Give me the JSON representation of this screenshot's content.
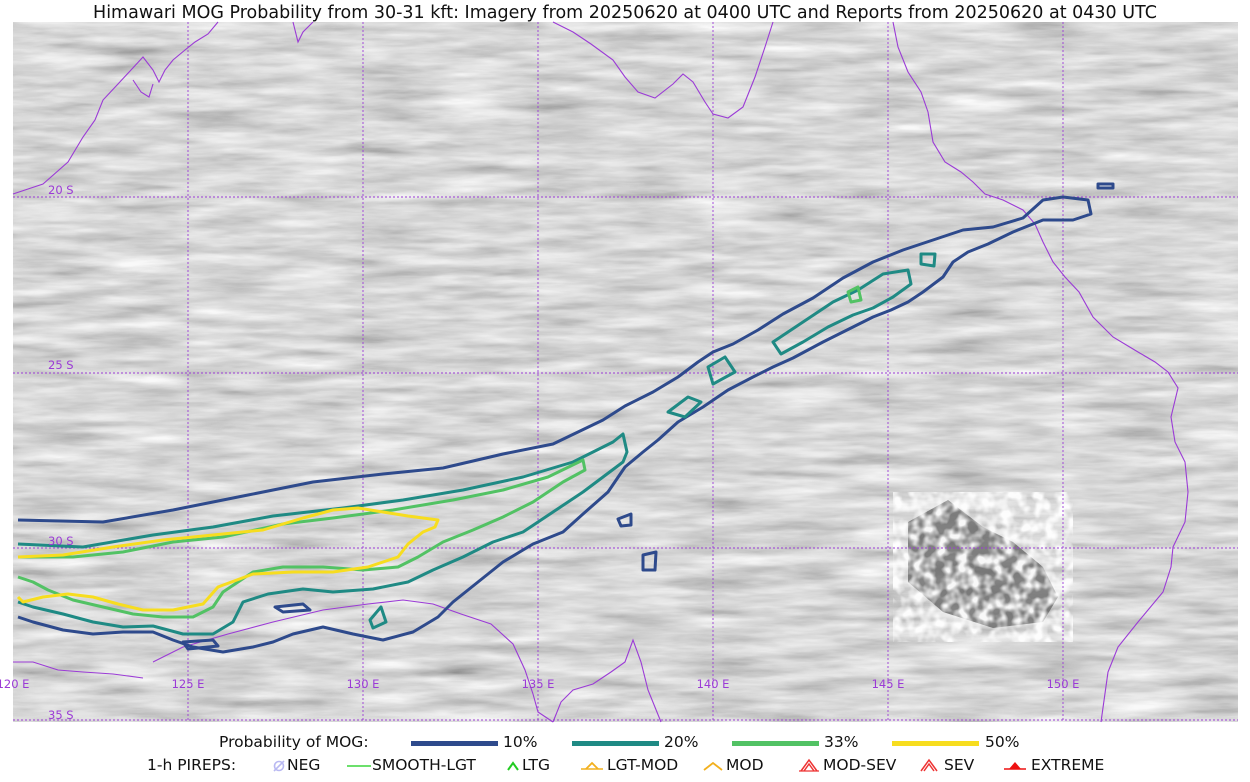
{
  "title": "Himawari MOG Probability from 30-31 kft: Imagery from 20250620 at 0400 UTC and Reports from 20250620 at 0430 UTC",
  "map": {
    "lat_labels": [
      "20 S",
      "25 S",
      "30 S",
      "35 S"
    ],
    "lon_labels": [
      "120 E",
      "125 E",
      "130 E",
      "135 E",
      "140 E",
      "145 E",
      "150 E"
    ],
    "colors": {
      "graticule": "#9b3bd6",
      "coastline": "#9b3bd6",
      "contour_10": "#2e4a8c",
      "contour_20": "#1f8a84",
      "contour_33": "#52c264",
      "contour_50": "#f7dd1f"
    }
  },
  "legend": {
    "probability_label": "Probability of MOG:",
    "levels": [
      {
        "label": "10%",
        "color": "#2e4a8c"
      },
      {
        "label": "20%",
        "color": "#1f8a84"
      },
      {
        "label": "33%",
        "color": "#52c264"
      },
      {
        "label": "50%",
        "color": "#f7dd1f"
      }
    ],
    "pireps_label": "1-h PIREPS:",
    "pireps": [
      {
        "label": "NEG",
        "icon": "neg-icon",
        "color": "#b9b9f2"
      },
      {
        "label": "SMOOTH-LGT",
        "icon": "line-icon",
        "color": "#3bd63b"
      },
      {
        "label": "LTG",
        "icon": "caret-icon",
        "color": "#22cc22"
      },
      {
        "label": "LGT-MOD",
        "icon": "caret-bar-icon",
        "color": "#f2b01e"
      },
      {
        "label": "MOD",
        "icon": "caret-icon",
        "color": "#f2b01e"
      },
      {
        "label": "MOD-SEV",
        "icon": "double-caret-icon",
        "color": "#ee3333"
      },
      {
        "label": "SEV",
        "icon": "double-caret-icon",
        "color": "#ee3333"
      },
      {
        "label": "EXTREME",
        "icon": "filled-caret-icon",
        "color": "#ee1111"
      }
    ]
  }
}
